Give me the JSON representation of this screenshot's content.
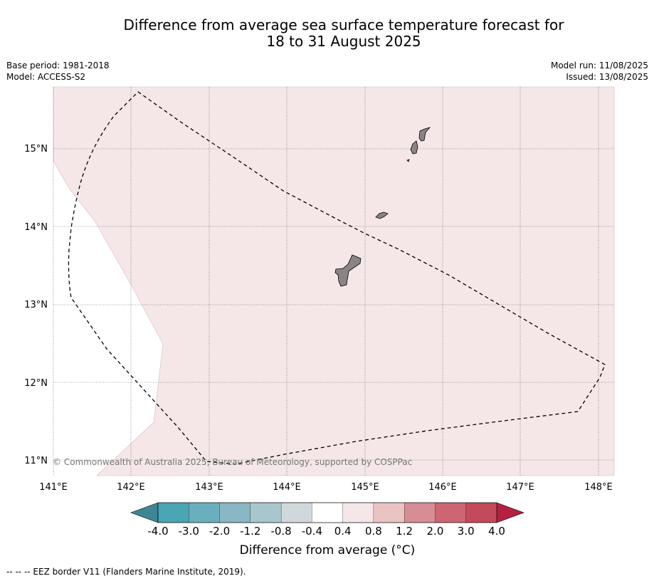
{
  "title": {
    "line1": "Difference from average sea surface temperature forecast for",
    "line2": "18 to 31 August 2025"
  },
  "info": {
    "base_period": "Base period: 1981-2018",
    "model": "Model: ACCESS-S2",
    "model_run": "Model run: 11/08/2025",
    "issued": "Issued: 13/08/2025"
  },
  "map": {
    "lon_ticks": [
      "141°E",
      "142°E",
      "143°E",
      "144°E",
      "145°E",
      "146°E",
      "147°E",
      "148°E"
    ],
    "lat_ticks": [
      "15°N",
      "14°N",
      "13°N",
      "12°N",
      "11°N"
    ],
    "copyright": "© Commonwealth of Australia 2025, Bureau of Meteorology, supported by COSPPac",
    "fill_color": "#f5e7e7",
    "land_color": "#8a8585",
    "eez_line_color": "#000000"
  },
  "colorbar": {
    "ticks": [
      "-4.0",
      "-3.0",
      "-2.0",
      "-1.2",
      "-0.8",
      "-0.4",
      "0.4",
      "0.8",
      "1.2",
      "2.0",
      "3.0",
      "4.0"
    ],
    "colors": [
      "#4aa5b5",
      "#6aafbe",
      "#89b7c3",
      "#a8c7cc",
      "#d1d8db",
      "#ffffff",
      "#f5e7e7",
      "#e9c4c3",
      "#d88c95",
      "#cd6672",
      "#c34a5b"
    ],
    "under_color": "#3f8594",
    "over_color": "#b3213f",
    "title": "Difference from average (°C)"
  },
  "legend_note": "--  --  -- EEZ border V11 (Flanders Marine Institute, 2019)."
}
